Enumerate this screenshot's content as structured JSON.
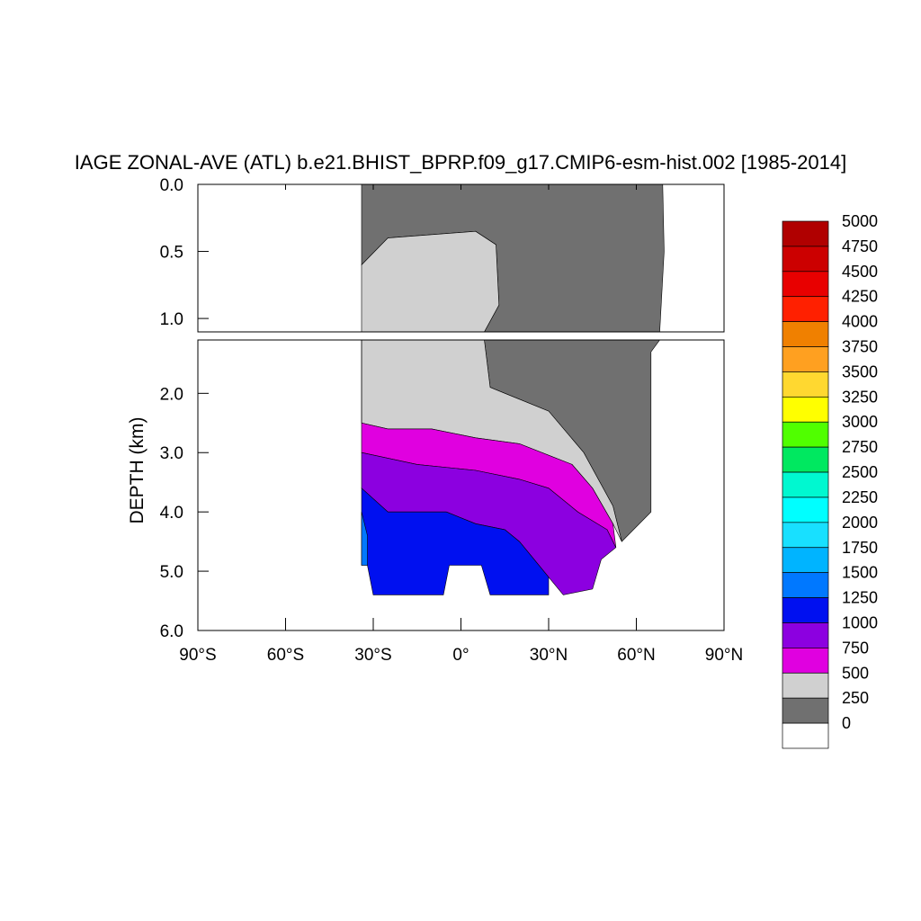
{
  "chart_data": {
    "type": "heatmap",
    "subtype": "filled-contour",
    "title": "IAGE ZONAL-AVE (ATL) b.e21.BHIST_BPRP.f09_g17.CMIP6-esm-hist.002 [1985-2014]",
    "ylabel": "DEPTH (km)",
    "xlabel": "",
    "x_ticks": [
      "90°S",
      "60°S",
      "30°S",
      "0°",
      "30°N",
      "60°N",
      "90°N"
    ],
    "xlim": [
      -90,
      90
    ],
    "upper_panel": {
      "ylim": [
        0,
        1.1
      ],
      "y_ticks": [
        "0.0",
        "0.5",
        "1.0"
      ]
    },
    "lower_panel": {
      "ylim": [
        1.1,
        6.0
      ],
      "y_ticks": [
        "2.0",
        "3.0",
        "4.0",
        "5.0",
        "6.0"
      ]
    },
    "colorbar": {
      "levels": [
        "0",
        "250",
        "500",
        "750",
        "1000",
        "1250",
        "1500",
        "1750",
        "2000",
        "2250",
        "2500",
        "2750",
        "3000",
        "3250",
        "3500",
        "3750",
        "4000",
        "4250",
        "4500",
        "4750",
        "5000"
      ],
      "colors": [
        "#ffffff",
        "#707070",
        "#d0d0d0",
        "#e000e0",
        "#8c00e0",
        "#0010f0",
        "#0078ff",
        "#00b4ff",
        "#18e0ff",
        "#00ffff",
        "#00f8d0",
        "#00e860",
        "#50ff00",
        "#ffff00",
        "#ffd830",
        "#ffa020",
        "#f08000",
        "#ff2000",
        "#e80000",
        "#cc0000",
        "#b00000"
      ]
    },
    "regions": [
      {
        "name": "0-250",
        "points": [
          [
            -34,
            0
          ],
          [
            69,
            0
          ],
          [
            69.5,
            0.5
          ],
          [
            68,
            1.1
          ],
          [
            65,
            1.3
          ],
          [
            65,
            4.0
          ],
          [
            55,
            4.5
          ],
          [
            52,
            3.9
          ],
          [
            42,
            3.0
          ],
          [
            30,
            2.3
          ],
          [
            15,
            2.0
          ],
          [
            10,
            1.9
          ],
          [
            8,
            1.1
          ],
          [
            13,
            0.9
          ],
          [
            12,
            0.45
          ],
          [
            5,
            0.35
          ],
          [
            -25,
            0.4
          ],
          [
            -34,
            0.6
          ]
        ]
      },
      {
        "name": "250-500",
        "points": [
          [
            -34,
            0.6
          ],
          [
            -25,
            0.4
          ],
          [
            5,
            0.35
          ],
          [
            12,
            0.45
          ],
          [
            13,
            0.9
          ],
          [
            8,
            1.1
          ],
          [
            10,
            1.9
          ],
          [
            15,
            2.0
          ],
          [
            30,
            2.3
          ],
          [
            42,
            3.0
          ],
          [
            52,
            3.9
          ],
          [
            55,
            4.5
          ],
          [
            52,
            4.2
          ],
          [
            45,
            3.6
          ],
          [
            38,
            3.2
          ],
          [
            20,
            2.85
          ],
          [
            5,
            2.75
          ],
          [
            -10,
            2.6
          ],
          [
            -25,
            2.6
          ],
          [
            -34,
            2.5
          ]
        ]
      },
      {
        "name": "500-750",
        "points": [
          [
            -34,
            1.1
          ],
          [
            -34,
            2.5
          ],
          [
            -25,
            2.6
          ],
          [
            -10,
            2.6
          ],
          [
            5,
            2.75
          ],
          [
            20,
            2.85
          ],
          [
            38,
            3.2
          ],
          [
            45,
            3.6
          ],
          [
            52,
            4.2
          ],
          [
            53,
            4.6
          ],
          [
            50,
            4.3
          ],
          [
            40,
            4.0
          ],
          [
            30,
            3.6
          ],
          [
            20,
            3.45
          ],
          [
            5,
            3.3
          ],
          [
            -15,
            3.2
          ],
          [
            -34,
            3.0
          ]
        ]
      },
      {
        "name": "750-1000",
        "points": [
          [
            -34,
            3.0
          ],
          [
            -15,
            3.2
          ],
          [
            5,
            3.3
          ],
          [
            20,
            3.45
          ],
          [
            30,
            3.6
          ],
          [
            40,
            4.0
          ],
          [
            50,
            4.3
          ],
          [
            53,
            4.6
          ],
          [
            48,
            4.8
          ],
          [
            45,
            5.3
          ],
          [
            35,
            5.4
          ],
          [
            30,
            5.1
          ],
          [
            25,
            4.8
          ],
          [
            20,
            4.5
          ],
          [
            15,
            4.3
          ],
          [
            5,
            4.2
          ],
          [
            -5,
            4.0
          ],
          [
            -25,
            4.0
          ],
          [
            -34,
            3.6
          ]
        ]
      },
      {
        "name": "1000-1250",
        "points": [
          [
            -34,
            3.6
          ],
          [
            -25,
            4.0
          ],
          [
            -5,
            4.0
          ],
          [
            5,
            4.2
          ],
          [
            15,
            4.3
          ],
          [
            20,
            4.5
          ],
          [
            25,
            4.8
          ],
          [
            30,
            5.1
          ],
          [
            30,
            5.4
          ],
          [
            10,
            5.4
          ],
          [
            7,
            4.9
          ],
          [
            -4,
            4.9
          ],
          [
            -6,
            5.4
          ],
          [
            -30,
            5.4
          ],
          [
            -32,
            4.9
          ],
          [
            -34,
            4.9
          ]
        ]
      },
      {
        "name": "1250-1500",
        "points": [
          [
            -34,
            4.0
          ],
          [
            -32,
            4.4
          ],
          [
            -32,
            4.9
          ],
          [
            -34,
            4.9
          ]
        ]
      }
    ]
  }
}
